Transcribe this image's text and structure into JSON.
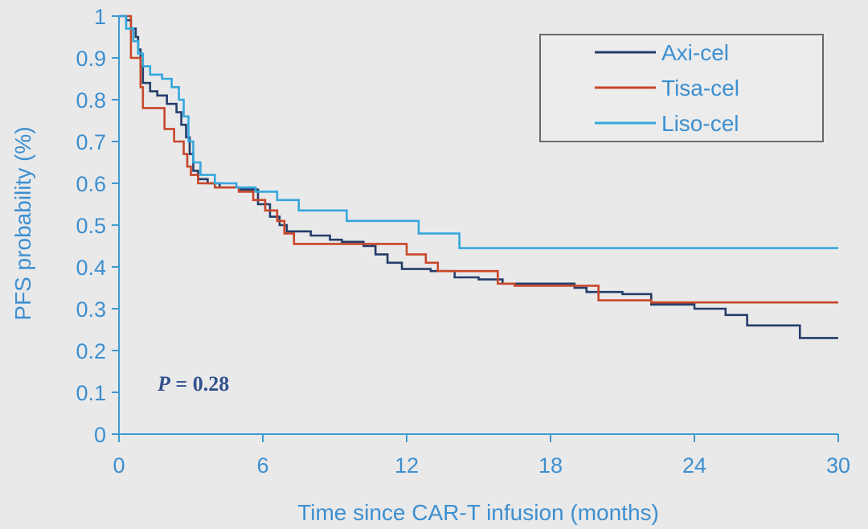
{
  "chart_data": {
    "type": "line",
    "xlabel": "Time since CAR-T infusion (months)",
    "ylabel": "PFS probability (%)",
    "xlim": [
      0,
      30
    ],
    "ylim": [
      0,
      1
    ],
    "x_ticks": [
      0,
      6,
      12,
      18,
      24,
      30
    ],
    "y_ticks": [
      0,
      0.1,
      0.2,
      0.3,
      0.4,
      0.5,
      0.6,
      0.7,
      0.8,
      0.9,
      1
    ],
    "y_tick_labels": [
      "0",
      "0.1",
      "0.2",
      "0.3",
      "0.4",
      "0.5",
      "0.6",
      "0.7",
      "0.8",
      "0.9",
      "1"
    ],
    "grid": false,
    "legend_position": "top-right",
    "annotation": {
      "italic": "P",
      "rest": " = 0.28"
    },
    "colors": {
      "axis": "#3d9ad1",
      "tick_text": "#3d8fcf",
      "annotation": "#33508c",
      "legend_border": "#6a6a6a",
      "legend_bg": "#ececec"
    },
    "series": [
      {
        "name": "Axi-cel",
        "color": "#243e6a",
        "step": true,
        "x": [
          0,
          0.3,
          0.5,
          0.7,
          0.8,
          0.9,
          1.0,
          1.3,
          1.6,
          2.0,
          2.4,
          2.6,
          2.8,
          2.95,
          3.1,
          3.3,
          3.7,
          4.2,
          5.0,
          5.8,
          6.3,
          6.7,
          7.0,
          8.0,
          8.8,
          9.3,
          10.2,
          10.7,
          11.2,
          11.8,
          13.0,
          14.0,
          15.0,
          16.0,
          19.0,
          19.5,
          21.0,
          22.2,
          24.0,
          25.3,
          26.2,
          28.4,
          30.0
        ],
        "y": [
          1.0,
          0.99,
          0.97,
          0.95,
          0.92,
          0.88,
          0.84,
          0.82,
          0.81,
          0.79,
          0.77,
          0.74,
          0.71,
          0.67,
          0.63,
          0.61,
          0.6,
          0.59,
          0.585,
          0.55,
          0.52,
          0.5,
          0.485,
          0.475,
          0.465,
          0.46,
          0.45,
          0.43,
          0.41,
          0.395,
          0.39,
          0.375,
          0.37,
          0.36,
          0.35,
          0.34,
          0.335,
          0.31,
          0.3,
          0.285,
          0.26,
          0.23,
          0.23
        ]
      },
      {
        "name": "Tisa-cel",
        "color": "#c8472a",
        "step": true,
        "x": [
          0,
          0.5,
          0.9,
          1.0,
          1.9,
          2.3,
          2.7,
          2.85,
          3.0,
          3.3,
          4.0,
          5.0,
          5.6,
          6.1,
          6.6,
          6.9,
          7.3,
          9.0,
          10.2,
          12.0,
          12.8,
          13.3,
          14.2,
          15.8,
          16.5,
          20.0,
          22.2,
          30.0
        ],
        "y": [
          1.0,
          0.9,
          0.83,
          0.78,
          0.73,
          0.7,
          0.67,
          0.64,
          0.62,
          0.6,
          0.59,
          0.58,
          0.56,
          0.535,
          0.51,
          0.48,
          0.455,
          0.455,
          0.455,
          0.43,
          0.41,
          0.39,
          0.39,
          0.36,
          0.355,
          0.32,
          0.315,
          0.315
        ]
      },
      {
        "name": "Liso-cel",
        "color": "#35a7dc",
        "step": true,
        "x": [
          0,
          0.3,
          0.6,
          0.8,
          1.0,
          1.3,
          1.8,
          2.2,
          2.5,
          2.7,
          2.9,
          3.1,
          3.4,
          4.0,
          4.9,
          5.7,
          6.6,
          7.5,
          9.5,
          12.5,
          14.2,
          30.0
        ],
        "y": [
          1.0,
          0.97,
          0.94,
          0.91,
          0.88,
          0.86,
          0.85,
          0.83,
          0.8,
          0.76,
          0.7,
          0.65,
          0.62,
          0.6,
          0.59,
          0.58,
          0.56,
          0.535,
          0.51,
          0.48,
          0.445,
          0.445
        ]
      }
    ]
  }
}
